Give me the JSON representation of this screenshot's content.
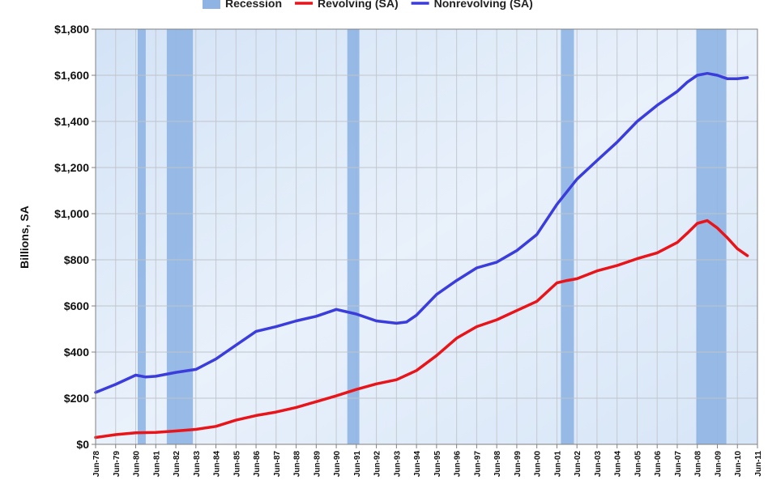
{
  "chart_data": {
    "type": "line",
    "title": "",
    "xlabel": "",
    "ylabel": "Billions, SA",
    "ylim": [
      0,
      1800
    ],
    "xlim": [
      1978.0,
      2011.0
    ],
    "y_ticks": [
      {
        "value": 0,
        "label": "$0"
      },
      {
        "value": 200,
        "label": "$200"
      },
      {
        "value": 400,
        "label": "$400"
      },
      {
        "value": 600,
        "label": "$600"
      },
      {
        "value": 800,
        "label": "$800"
      },
      {
        "value": 1000,
        "label": "$1,000"
      },
      {
        "value": 1200,
        "label": "$1,200"
      },
      {
        "value": 1400,
        "label": "$1,400"
      },
      {
        "value": 1600,
        "label": "$1,600"
      },
      {
        "value": 1800,
        "label": "$1,800"
      }
    ],
    "x_ticks": [
      {
        "value": 1978,
        "label": "Jun-78"
      },
      {
        "value": 1979,
        "label": "Jun-79"
      },
      {
        "value": 1980,
        "label": "Jun-80"
      },
      {
        "value": 1981,
        "label": "Jun-81"
      },
      {
        "value": 1982,
        "label": "Jun-82"
      },
      {
        "value": 1983,
        "label": "Jun-83"
      },
      {
        "value": 1984,
        "label": "Jun-84"
      },
      {
        "value": 1985,
        "label": "Jun-85"
      },
      {
        "value": 1986,
        "label": "Jun-86"
      },
      {
        "value": 1987,
        "label": "Jun-87"
      },
      {
        "value": 1988,
        "label": "Jun-88"
      },
      {
        "value": 1989,
        "label": "Jun-89"
      },
      {
        "value": 1990,
        "label": "Jun-90"
      },
      {
        "value": 1991,
        "label": "Jun-91"
      },
      {
        "value": 1992,
        "label": "Jun-92"
      },
      {
        "value": 1993,
        "label": "Jun-93"
      },
      {
        "value": 1994,
        "label": "Jun-94"
      },
      {
        "value": 1995,
        "label": "Jun-95"
      },
      {
        "value": 1996,
        "label": "Jun-96"
      },
      {
        "value": 1997,
        "label": "Jun-97"
      },
      {
        "value": 1998,
        "label": "Jun-98"
      },
      {
        "value": 1999,
        "label": "Jun-99"
      },
      {
        "value": 2000,
        "label": "Jun-00"
      },
      {
        "value": 2001,
        "label": "Jun-01"
      },
      {
        "value": 2002,
        "label": "Jun-02"
      },
      {
        "value": 2003,
        "label": "Jun-03"
      },
      {
        "value": 2004,
        "label": "Jun-04"
      },
      {
        "value": 2005,
        "label": "Jun-05"
      },
      {
        "value": 2006,
        "label": "Jun-06"
      },
      {
        "value": 2007,
        "label": "Jun-07"
      },
      {
        "value": 2008,
        "label": "Jun-08"
      },
      {
        "value": 2009,
        "label": "Jun-09"
      },
      {
        "value": 2010,
        "label": "Jun-10"
      },
      {
        "value": 2011,
        "label": "Jun-11"
      }
    ],
    "grid": true,
    "legend_position": "top",
    "legend": [
      {
        "label": "Recession",
        "kind": "band",
        "color": "#8fb4e3"
      },
      {
        "label": "Revolving (SA)",
        "kind": "line",
        "color": "#e8141a"
      },
      {
        "label": "Nonrevolving (SA)",
        "kind": "line",
        "color": "#3a3cdc"
      }
    ],
    "recessions": [
      {
        "start": 1980.1,
        "end": 1980.5
      },
      {
        "start": 1981.55,
        "end": 1982.85
      },
      {
        "start": 1990.55,
        "end": 1991.15
      },
      {
        "start": 2001.2,
        "end": 2001.85
      },
      {
        "start": 2007.95,
        "end": 2009.45
      }
    ],
    "series": [
      {
        "name": "Revolving (SA)",
        "color": "#e8141a",
        "x": [
          1978.0,
          1979.0,
          1980.0,
          1981.0,
          1982.0,
          1983.0,
          1984.0,
          1985.0,
          1986.0,
          1987.0,
          1988.0,
          1989.0,
          1990.0,
          1991.0,
          1992.0,
          1993.0,
          1994.0,
          1995.0,
          1996.0,
          1997.0,
          1998.0,
          1999.0,
          2000.0,
          2001.0,
          2001.5,
          2002.0,
          2003.0,
          2004.0,
          2005.0,
          2006.0,
          2007.0,
          2007.5,
          2008.0,
          2008.5,
          2009.0,
          2009.5,
          2010.0,
          2010.5
        ],
        "y": [
          30,
          42,
          50,
          52,
          58,
          65,
          78,
          105,
          125,
          140,
          160,
          185,
          210,
          238,
          262,
          280,
          320,
          385,
          460,
          510,
          540,
          580,
          620,
          700,
          710,
          718,
          752,
          775,
          805,
          830,
          875,
          915,
          958,
          970,
          938,
          895,
          848,
          818
        ]
      },
      {
        "name": "Nonrevolving (SA)",
        "color": "#3a3cdc",
        "x": [
          1978.0,
          1979.0,
          1980.0,
          1980.5,
          1981.0,
          1982.0,
          1983.0,
          1984.0,
          1985.0,
          1986.0,
          1987.0,
          1988.0,
          1989.0,
          1990.0,
          1991.0,
          1992.0,
          1993.0,
          1993.5,
          1994.0,
          1995.0,
          1996.0,
          1997.0,
          1998.0,
          1999.0,
          2000.0,
          2001.0,
          2002.0,
          2003.0,
          2004.0,
          2005.0,
          2006.0,
          2007.0,
          2007.5,
          2008.0,
          2008.5,
          2009.0,
          2009.5,
          2010.0,
          2010.5
        ],
        "y": [
          225,
          260,
          300,
          292,
          295,
          312,
          325,
          370,
          430,
          490,
          510,
          535,
          555,
          585,
          565,
          535,
          525,
          530,
          560,
          650,
          710,
          765,
          790,
          840,
          910,
          1040,
          1150,
          1230,
          1310,
          1400,
          1470,
          1530,
          1570,
          1600,
          1608,
          1600,
          1585,
          1585,
          1590
        ]
      }
    ]
  }
}
